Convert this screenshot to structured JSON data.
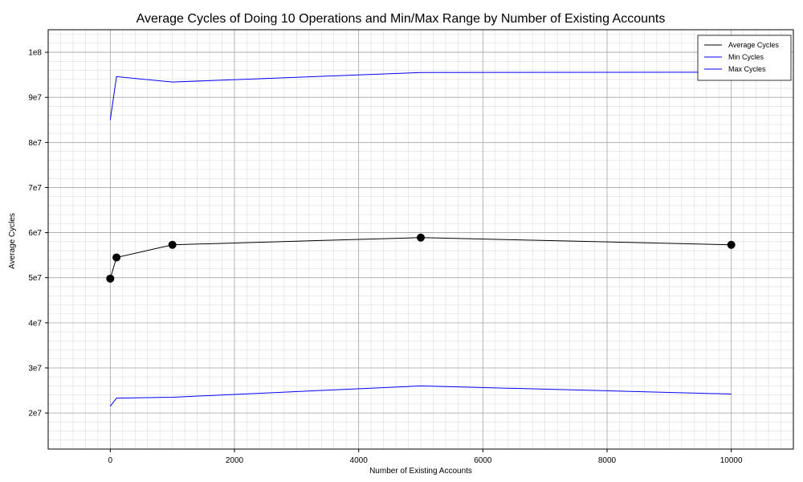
{
  "chart_data": {
    "type": "line",
    "title": "Average Cycles of Doing 10 Operations and Min/Max Range by Number of Existing Accounts",
    "xlabel": "Number of Existing Accounts",
    "ylabel": "Average Cycles",
    "xlim": [
      -1000,
      11000
    ],
    "ylim": [
      12000000,
      105000000
    ],
    "x_ticks": [
      0,
      2000,
      4000,
      6000,
      8000,
      10000
    ],
    "x_tick_labels": [
      "0",
      "2000",
      "4000",
      "6000",
      "8000",
      "10000"
    ],
    "y_ticks": [
      20000000,
      30000000,
      40000000,
      50000000,
      60000000,
      70000000,
      80000000,
      90000000,
      100000000
    ],
    "y_tick_labels": [
      "2e7",
      "3e7",
      "4e7",
      "5e7",
      "6e7",
      "7e7",
      "8e7",
      "9e7",
      "1e8"
    ],
    "grid": true,
    "legend_position": "top-right",
    "series": [
      {
        "name": "Average Cycles",
        "color": "#000000",
        "markers": true,
        "x": [
          0,
          100,
          1000,
          5000,
          10000
        ],
        "y": [
          49800000,
          54500000,
          57300000,
          58900000,
          57300000
        ]
      },
      {
        "name": "Min Cycles",
        "color": "#0000ff",
        "markers": false,
        "x": [
          0,
          100,
          1000,
          5000,
          10000
        ],
        "y": [
          21500000,
          23300000,
          23500000,
          26000000,
          24200000
        ]
      },
      {
        "name": "Max Cycles",
        "color": "#0000ff",
        "markers": false,
        "x": [
          0,
          100,
          1000,
          5000,
          10000
        ],
        "y": [
          85000000,
          94600000,
          93400000,
          95500000,
          95600000
        ]
      }
    ]
  }
}
